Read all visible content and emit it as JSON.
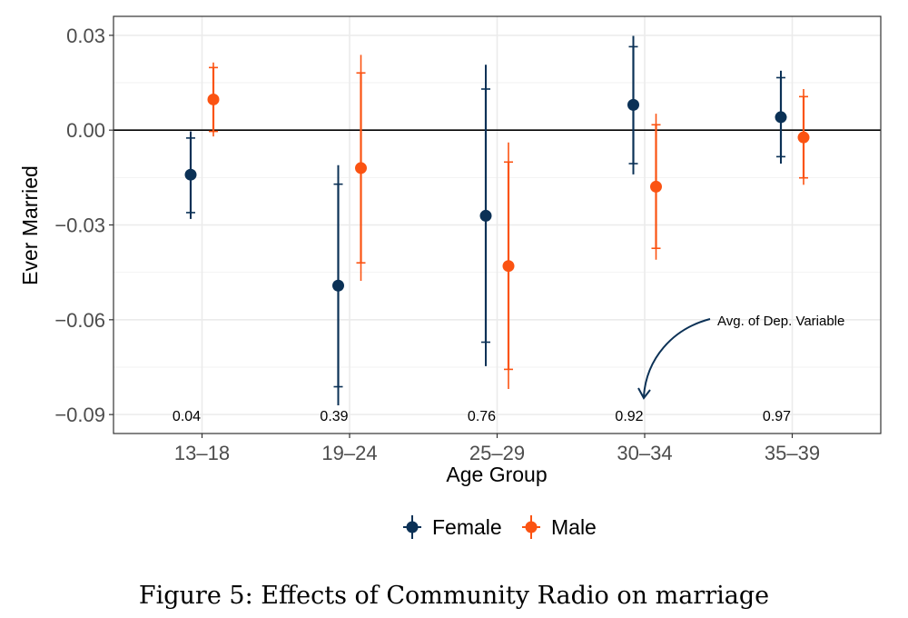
{
  "chart_data": {
    "type": "scatter",
    "subtype": "point-range (coefficient plot with 90% and 95% intervals)",
    "xlabel": "Age Group",
    "ylabel": "Ever Married",
    "categories": [
      "13–18",
      "19–24",
      "25–29",
      "30–34",
      "35–39"
    ],
    "yticks": [
      0.03,
      0.0,
      -0.03,
      -0.06,
      -0.09
    ],
    "ytick_labels": [
      "0.03",
      "0.00",
      "−0.03",
      "−0.06",
      "−0.09"
    ],
    "ylim": [
      -0.096,
      0.036
    ],
    "grid": true,
    "reference_line": 0,
    "legend_position": "bottom",
    "series": [
      {
        "name": "Female",
        "color": "#0b3156",
        "estimate": [
          -0.0141,
          -0.0492,
          -0.0271,
          0.008,
          0.0041
        ],
        "ci90": [
          [
            -0.0261,
            -0.0025
          ],
          [
            -0.0812,
            -0.0171
          ],
          [
            -0.0671,
            0.013
          ],
          [
            -0.0106,
            0.0264
          ],
          [
            -0.0084,
            0.0166
          ]
        ],
        "ci95": [
          [
            -0.0281,
            -0.0004
          ],
          [
            -0.0871,
            -0.0111
          ],
          [
            -0.0747,
            0.0207
          ],
          [
            -0.014,
            0.0298
          ],
          [
            -0.0106,
            0.0188
          ]
        ]
      },
      {
        "name": "Male",
        "color": "#fb5312",
        "estimate": [
          0.0097,
          -0.012,
          -0.043,
          -0.0179,
          -0.0023
        ],
        "ci90": [
          [
            -0.0004,
            0.0198
          ],
          [
            -0.042,
            0.0181
          ],
          [
            -0.0757,
            -0.0101
          ],
          [
            -0.0374,
            0.0017
          ],
          [
            -0.0151,
            0.0106
          ]
        ],
        "ci95": [
          [
            -0.002,
            0.0214
          ],
          [
            -0.0477,
            0.0238
          ],
          [
            -0.0819,
            -0.0039
          ],
          [
            -0.041,
            0.0052
          ],
          [
            -0.0173,
            0.013
          ]
        ]
      }
    ],
    "avg_dep_variable": [
      "0.04",
      "0.39",
      "0.76",
      "0.92",
      "0.97"
    ],
    "annotation": "Avg. of Dep. Variable"
  },
  "caption": "Figure 5: Effects of Community Radio on marriage"
}
